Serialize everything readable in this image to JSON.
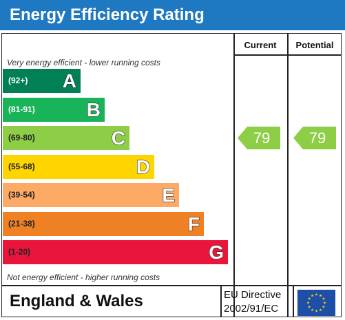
{
  "header": {
    "title": "Energy Efficiency Rating"
  },
  "columns": {
    "current": "Current",
    "potential": "Potential"
  },
  "captions": {
    "top": "Very energy efficient - lower running costs",
    "bottom": "Not energy efficient - higher running costs"
  },
  "footer": {
    "region": "England & Wales",
    "directive_line1": "EU Directive",
    "directive_line2": "2002/91/EC"
  },
  "chart_data": {
    "type": "bar",
    "title": "Energy Efficiency Rating",
    "categories": [
      "A",
      "B",
      "C",
      "D",
      "E",
      "F",
      "G"
    ],
    "ranges": [
      "(92+)",
      "(81-91)",
      "(69-80)",
      "(55-68)",
      "(39-54)",
      "(21-38)",
      "(1-20)"
    ],
    "band_colors": [
      "#008054",
      "#19b459",
      "#8dce46",
      "#ffd500",
      "#fcaa65",
      "#ef8023",
      "#e9153b"
    ],
    "range_text_colors": [
      "#ffffff",
      "#ffffff",
      "#222222",
      "#222222",
      "#222222",
      "#222222",
      "#222222"
    ],
    "current": {
      "label": "Current",
      "value": 79,
      "band": "C",
      "color": "#8dce46"
    },
    "potential": {
      "label": "Potential",
      "value": 79,
      "band": "C",
      "color": "#8dce46"
    }
  }
}
